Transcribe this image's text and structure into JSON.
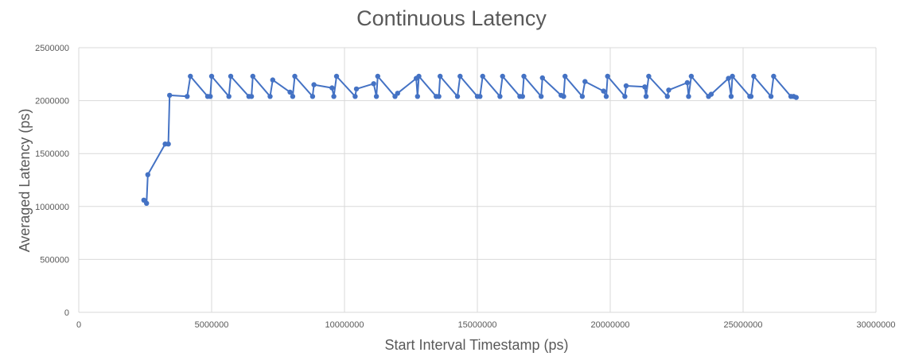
{
  "chart_data": {
    "type": "line",
    "title": "Continuous Latency",
    "xlabel": "Start Interval Timestamp (ps)",
    "ylabel": "Averaged Latency (ps)",
    "xlim": [
      0,
      30000000
    ],
    "ylim": [
      0,
      2500000
    ],
    "x_ticks": [
      "0",
      "5000000",
      "10000000",
      "15000000",
      "20000000",
      "25000000",
      "30000000"
    ],
    "y_ticks": [
      "0",
      "500000",
      "1000000",
      "1500000",
      "2000000",
      "2500000"
    ],
    "grid": true,
    "legend": "none",
    "series": [
      {
        "color": "#4472C4",
        "marker": "circle",
        "points": [
          [
            2450000,
            1060000
          ],
          [
            2550000,
            1030000
          ],
          [
            2600000,
            1300000
          ],
          [
            3250000,
            1590000
          ],
          [
            3370000,
            1590000
          ],
          [
            3420000,
            2050000
          ],
          [
            4080000,
            2040000
          ],
          [
            4200000,
            2230000
          ],
          [
            4850000,
            2040000
          ],
          [
            4950000,
            2040000
          ],
          [
            5000000,
            2230000
          ],
          [
            5650000,
            2040000
          ],
          [
            5720000,
            2230000
          ],
          [
            6400000,
            2040000
          ],
          [
            6500000,
            2040000
          ],
          [
            6550000,
            2230000
          ],
          [
            7200000,
            2040000
          ],
          [
            7300000,
            2195000
          ],
          [
            7950000,
            2080000
          ],
          [
            8050000,
            2040000
          ],
          [
            8130000,
            2230000
          ],
          [
            8800000,
            2040000
          ],
          [
            8850000,
            2150000
          ],
          [
            9530000,
            2120000
          ],
          [
            9600000,
            2040000
          ],
          [
            9700000,
            2230000
          ],
          [
            10400000,
            2040000
          ],
          [
            10450000,
            2110000
          ],
          [
            11100000,
            2160000
          ],
          [
            11200000,
            2040000
          ],
          [
            11250000,
            2230000
          ],
          [
            11900000,
            2040000
          ],
          [
            12000000,
            2070000
          ],
          [
            12700000,
            2210000
          ],
          [
            12750000,
            2040000
          ],
          [
            12800000,
            2230000
          ],
          [
            13450000,
            2040000
          ],
          [
            13550000,
            2040000
          ],
          [
            13600000,
            2230000
          ],
          [
            14250000,
            2040000
          ],
          [
            14350000,
            2230000
          ],
          [
            15000000,
            2040000
          ],
          [
            15100000,
            2040000
          ],
          [
            15200000,
            2230000
          ],
          [
            15850000,
            2040000
          ],
          [
            15950000,
            2230000
          ],
          [
            16600000,
            2040000
          ],
          [
            16700000,
            2040000
          ],
          [
            16750000,
            2230000
          ],
          [
            17400000,
            2040000
          ],
          [
            17450000,
            2215000
          ],
          [
            18150000,
            2050000
          ],
          [
            18250000,
            2040000
          ],
          [
            18300000,
            2230000
          ],
          [
            18950000,
            2040000
          ],
          [
            19050000,
            2180000
          ],
          [
            19750000,
            2090000
          ],
          [
            19850000,
            2040000
          ],
          [
            19900000,
            2230000
          ],
          [
            20550000,
            2040000
          ],
          [
            20600000,
            2140000
          ],
          [
            21300000,
            2130000
          ],
          [
            21350000,
            2040000
          ],
          [
            21450000,
            2230000
          ],
          [
            22150000,
            2040000
          ],
          [
            22200000,
            2100000
          ],
          [
            22900000,
            2170000
          ],
          [
            22950000,
            2040000
          ],
          [
            23050000,
            2230000
          ],
          [
            23700000,
            2040000
          ],
          [
            23800000,
            2060000
          ],
          [
            24450000,
            2210000
          ],
          [
            24550000,
            2040000
          ],
          [
            24600000,
            2230000
          ],
          [
            25250000,
            2040000
          ],
          [
            25300000,
            2040000
          ],
          [
            25400000,
            2230000
          ],
          [
            26050000,
            2040000
          ],
          [
            26150000,
            2230000
          ],
          [
            26800000,
            2040000
          ],
          [
            26900000,
            2040000
          ],
          [
            27000000,
            2030000
          ]
        ]
      }
    ]
  }
}
